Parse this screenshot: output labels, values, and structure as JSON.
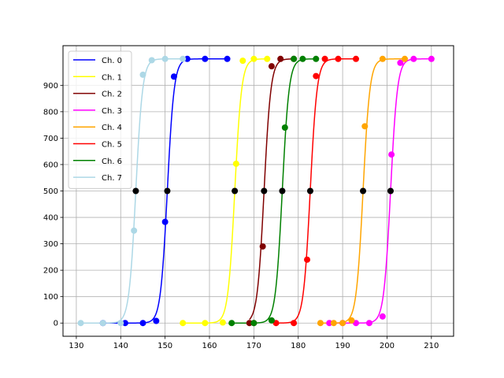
{
  "chart_data": {
    "type": "scatter",
    "xlim": [
      127,
      215
    ],
    "ylim": [
      -50,
      1050
    ],
    "xticks": [
      130,
      140,
      150,
      160,
      170,
      180,
      190,
      200,
      210
    ],
    "yticks": [
      0,
      100,
      200,
      300,
      400,
      500,
      600,
      700,
      800,
      900
    ],
    "grid": true,
    "legend_position": "top-left",
    "midpoint_marker_color": "#000000",
    "series": [
      {
        "name": "Ch. 0",
        "color": "#0000ff",
        "mid": 150.5,
        "k": 1.3,
        "points": [
          [
            136,
            0
          ],
          [
            141,
            0
          ],
          [
            145,
            0
          ],
          [
            148,
            8
          ],
          [
            150,
            383
          ],
          [
            152,
            933
          ],
          [
            155,
            1000
          ],
          [
            159,
            1000
          ],
          [
            164,
            1000
          ]
        ]
      },
      {
        "name": "Ch. 1",
        "color": "#ffff00",
        "mid": 165.7,
        "k": 1.3,
        "points": [
          [
            154,
            0
          ],
          [
            159,
            0
          ],
          [
            163,
            2
          ],
          [
            166,
            603
          ],
          [
            167.5,
            993
          ],
          [
            170,
            1000
          ],
          [
            173,
            1000
          ]
        ]
      },
      {
        "name": "Ch. 2",
        "color": "#800000",
        "mid": 172.3,
        "k": 1.3,
        "points": [
          [
            169,
            0
          ],
          [
            170,
            0
          ],
          [
            172,
            290
          ],
          [
            174,
            972
          ],
          [
            176,
            1000
          ],
          [
            179,
            1000
          ]
        ]
      },
      {
        "name": "Ch. 3",
        "color": "#ff00ff",
        "mid": 200.8,
        "k": 1.3,
        "points": [
          [
            187,
            0
          ],
          [
            190,
            0
          ],
          [
            193,
            0
          ],
          [
            196,
            0
          ],
          [
            199,
            25
          ],
          [
            201,
            638
          ],
          [
            203,
            985
          ],
          [
            206,
            1000
          ],
          [
            210,
            1000
          ]
        ]
      },
      {
        "name": "Ch. 4",
        "color": "#ffa500",
        "mid": 194.6,
        "k": 1.3,
        "points": [
          [
            185,
            0
          ],
          [
            188,
            0
          ],
          [
            190,
            0
          ],
          [
            192,
            10
          ],
          [
            195,
            745
          ],
          [
            199,
            1000
          ],
          [
            204,
            1000
          ]
        ]
      },
      {
        "name": "Ch. 5",
        "color": "#ff0000",
        "mid": 182.7,
        "k": 1.3,
        "points": [
          [
            175,
            0
          ],
          [
            179,
            0
          ],
          [
            182,
            240
          ],
          [
            184,
            935
          ],
          [
            186,
            1000
          ],
          [
            189,
            1000
          ],
          [
            193,
            1000
          ]
        ]
      },
      {
        "name": "Ch. 6",
        "color": "#008000",
        "mid": 176.4,
        "k": 1.3,
        "points": [
          [
            165,
            0
          ],
          [
            170,
            0
          ],
          [
            174,
            10
          ],
          [
            177,
            740
          ],
          [
            179,
            1000
          ],
          [
            181,
            1000
          ],
          [
            184,
            1000
          ]
        ]
      },
      {
        "name": "Ch. 7",
        "color": "#add8e6",
        "mid": 143.4,
        "k": 1.3,
        "points": [
          [
            131,
            0
          ],
          [
            136,
            0
          ],
          [
            140,
            0
          ],
          [
            143,
            350
          ],
          [
            145,
            940
          ],
          [
            147,
            995
          ],
          [
            150,
            1000
          ],
          [
            154,
            1000
          ]
        ]
      }
    ]
  }
}
